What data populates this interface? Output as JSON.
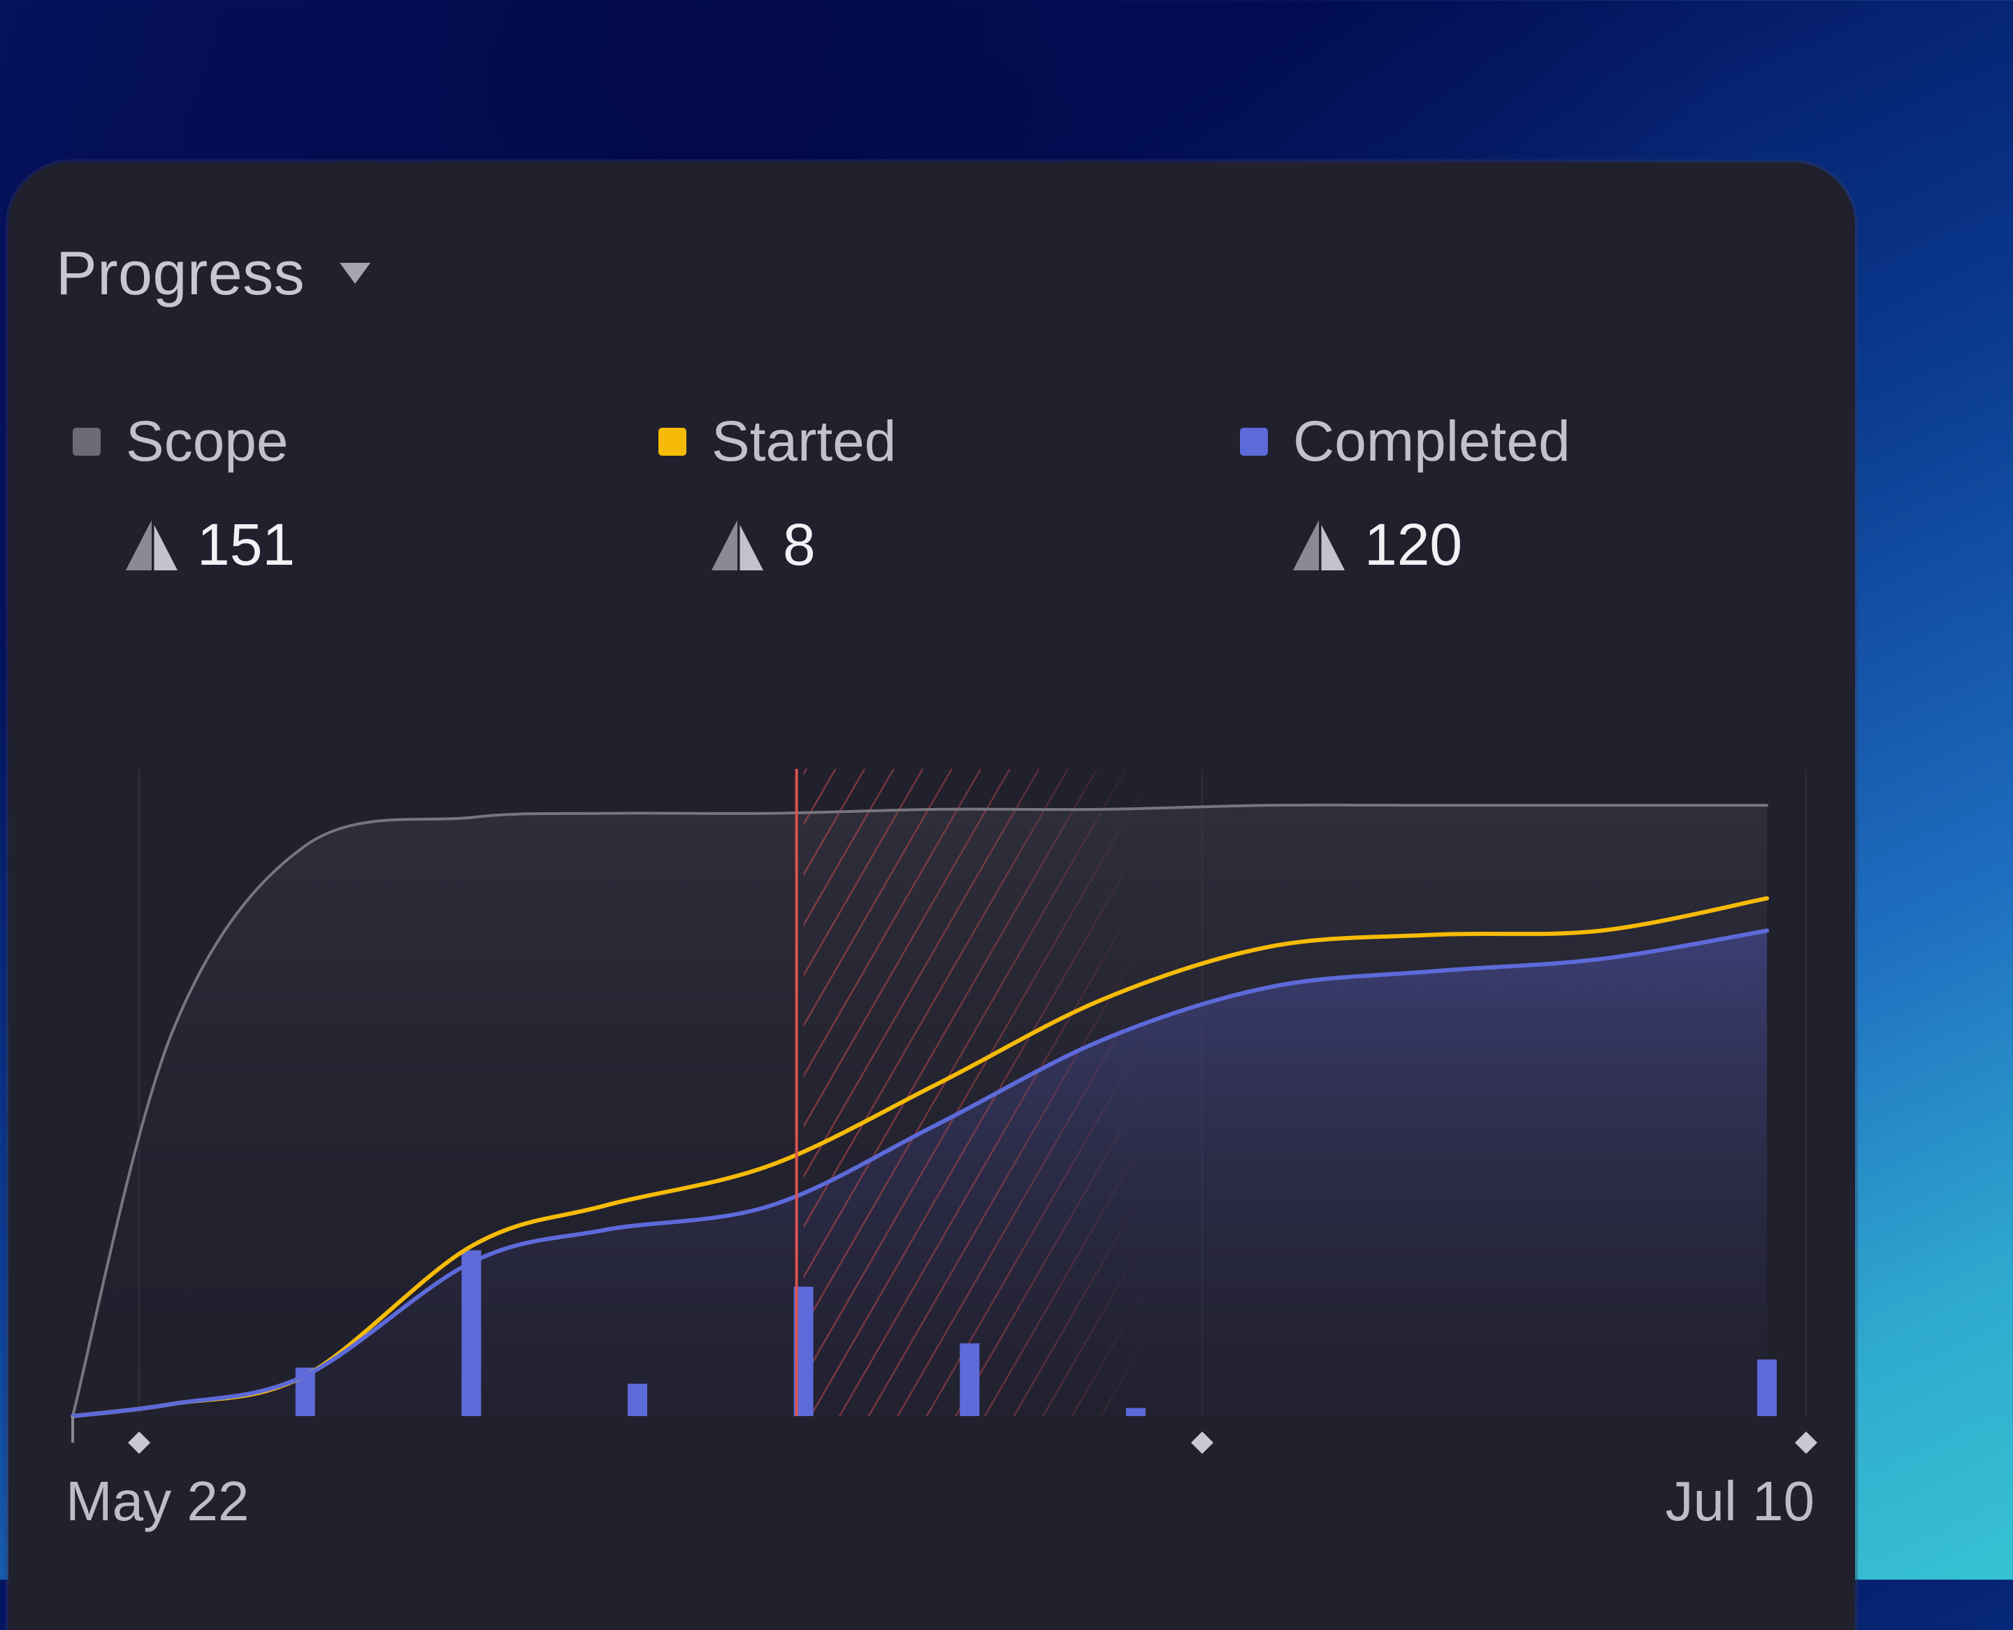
{
  "panel": {
    "title": "Progress",
    "dropdown_icon": "caret-down-icon"
  },
  "stats": [
    {
      "label": "Scope",
      "value": "151",
      "color": "#6b6b73",
      "icon": "estimate-icon"
    },
    {
      "label": "Started",
      "value": "8",
      "color": "#f5bb07",
      "icon": "estimate-icon"
    },
    {
      "label": "Completed",
      "value": "120",
      "color": "#5d6ad9",
      "icon": "estimate-icon"
    }
  ],
  "chart_data": {
    "type": "line",
    "x_labels": [
      "May 22",
      "Jul 10"
    ],
    "x": [
      "May 20",
      "May 23",
      "May 27",
      "Jun 1",
      "Jun 5",
      "Jun 10",
      "Jun 15",
      "Jun 20",
      "Jun 25",
      "Jun 30",
      "Jul 5",
      "Jul 10"
    ],
    "series": [
      {
        "name": "Scope",
        "color": "#77767f",
        "values": [
          0,
          95,
          141,
          148,
          149,
          149,
          150,
          150,
          151,
          151,
          151,
          151
        ]
      },
      {
        "name": "Started",
        "color": "#f5bb07",
        "values": [
          0,
          3,
          10,
          42,
          52,
          62,
          82,
          103,
          116,
          119,
          120,
          128
        ]
      },
      {
        "name": "Completed",
        "color": "#5d6ad9",
        "values": [
          0,
          3,
          10,
          38,
          46,
          52,
          72,
          93,
          106,
          110,
          113,
          120
        ]
      }
    ],
    "daily_completed_bars": {
      "dates": [
        "May 27",
        "Jun 1",
        "Jun 6",
        "Jun 11",
        "Jun 16",
        "Jun 21",
        "Jul 10"
      ],
      "values": [
        12,
        41,
        8,
        32,
        18,
        2,
        14
      ],
      "color": "#5d6ad9"
    },
    "today_marker": "Jun 11",
    "projection_region": [
      "Jun 11",
      "Jun 19"
    ],
    "ylim": [
      0,
      160
    ]
  }
}
